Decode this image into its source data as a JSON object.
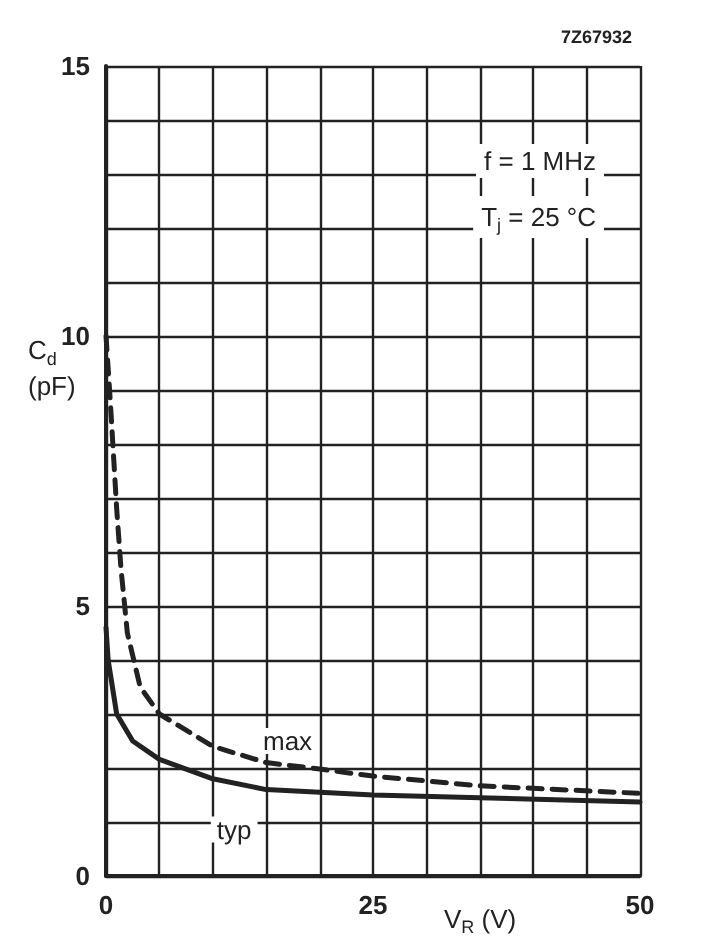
{
  "chart_data": {
    "type": "line",
    "xlabel": "V$_{R}$ (V)",
    "ylabel": "C$_{d}$ (pF)",
    "annotations": [
      "f = 1 MHz",
      "T$_{j}$ = 25 °C",
      "7Z67932"
    ],
    "xlim": [
      0,
      50
    ],
    "ylim": [
      0,
      15
    ],
    "xticks": [
      0,
      {
        "value": 5,
        "label": null
      },
      {
        "value": 10,
        "label": null
      },
      {
        "value": 15,
        "label": null
      },
      {
        "value": 20,
        "label": null
      },
      25,
      {
        "value": 30,
        "label": null
      },
      {
        "value": 35,
        "label": null
      },
      {
        "value": 40,
        "label": null
      },
      {
        "value": 45,
        "label": null
      },
      50
    ],
    "yticks": [
      0,
      {
        "value": 1,
        "label": null
      },
      {
        "value": 2,
        "label": null
      },
      {
        "value": 3,
        "label": null
      },
      {
        "value": 4,
        "label": null
      },
      5,
      {
        "value": 6,
        "label": null
      },
      {
        "value": 7,
        "label": null
      },
      {
        "value": 8,
        "label": null
      },
      {
        "value": 9,
        "label": null
      },
      10,
      {
        "value": 11,
        "label": null
      },
      {
        "value": 12,
        "label": null
      },
      {
        "value": 13,
        "label": null
      },
      {
        "value": 14,
        "label": null
      },
      15
    ],
    "grid": true,
    "marker": "none",
    "legend": false,
    "series": [
      {
        "name": "max",
        "color": "#222222",
        "line_style": "dashed",
        "x": [
          0,
          0.4,
          1,
          1.4,
          2,
          3.2,
          5,
          10,
          15,
          20,
          25,
          35,
          50
        ],
        "values": [
          10,
          8.8,
          6.8,
          5.7,
          4.5,
          3.5,
          3.0,
          2.4,
          2.1,
          1.98,
          1.85,
          1.67,
          1.53
        ]
      },
      {
        "name": "typ",
        "color": "#222222",
        "line_style": "solid",
        "x": [
          0,
          0.2,
          1,
          2.5,
          5,
          10,
          15,
          25,
          35,
          50
        ],
        "values": [
          4.6,
          4.0,
          3.0,
          2.5,
          2.16,
          1.8,
          1.6,
          1.5,
          1.45,
          1.37
        ]
      }
    ]
  }
}
